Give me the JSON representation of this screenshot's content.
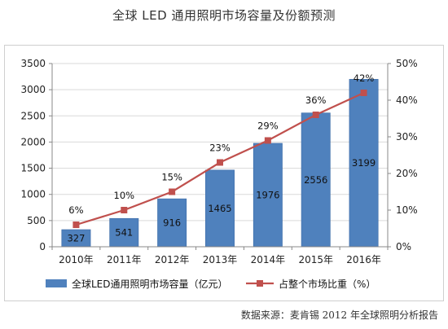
{
  "title": "全球 LED 通用照明市场容量及份额预测",
  "source": "数据来源：麦肯锡 2012 年全球照明分析报告",
  "colors": {
    "bar": "#4f81bd",
    "bar_edge": "#3a6aa6",
    "line": "#c0504d",
    "grid": "#d9d9d9"
  },
  "chart_data": {
    "type": "bar",
    "categories": [
      "2010年",
      "2011年",
      "2012年",
      "2013年",
      "2014年",
      "2015年",
      "2016年"
    ],
    "series": [
      {
        "name": "全球LED通用照明市场容量（亿元）",
        "type": "bar",
        "axis": "left",
        "values": [
          327,
          541,
          916,
          1465,
          1976,
          2556,
          3199
        ]
      },
      {
        "name": "占整个市场比重（%）",
        "type": "line",
        "axis": "right",
        "values": [
          6,
          10,
          15,
          23,
          29,
          36,
          42
        ]
      }
    ],
    "bar_labels": [
      "327",
      "541",
      "916",
      "1465",
      "1976",
      "2556",
      "3199"
    ],
    "line_labels": [
      "6%",
      "10%",
      "15%",
      "23%",
      "29%",
      "36%",
      "42%"
    ],
    "ylim": [
      0,
      3500
    ],
    "yticks": [
      0,
      500,
      1000,
      1500,
      2000,
      2500,
      3000,
      3500
    ],
    "ytick_labels": [
      "0",
      "500",
      "1000",
      "1500",
      "2000",
      "2500",
      "3000",
      "3500"
    ],
    "y2lim": [
      0,
      50
    ],
    "y2ticks": [
      0,
      10,
      20,
      30,
      40,
      50
    ],
    "y2tick_labels": [
      "0%",
      "10%",
      "20%",
      "30%",
      "40%",
      "50%"
    ],
    "grid": true,
    "legend_position": "bottom"
  }
}
